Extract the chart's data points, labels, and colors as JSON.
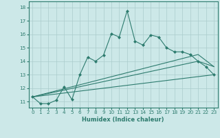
{
  "xlabel": "Humidex (Indice chaleur)",
  "background_color": "#cce8e8",
  "line_color": "#2d7b6e",
  "xlim": [
    -0.5,
    23.5
  ],
  "ylim": [
    10.55,
    18.45
  ],
  "yticks": [
    11,
    12,
    13,
    14,
    15,
    16,
    17,
    18
  ],
  "xticks": [
    0,
    1,
    2,
    3,
    4,
    5,
    6,
    7,
    8,
    9,
    10,
    11,
    12,
    13,
    14,
    15,
    16,
    17,
    18,
    19,
    20,
    21,
    22,
    23
  ],
  "series1_x": [
    0,
    1,
    2,
    3,
    4,
    5,
    6,
    7,
    8,
    9,
    10,
    11,
    12,
    13,
    14,
    15,
    16,
    17,
    18,
    19,
    20,
    21,
    22,
    23
  ],
  "series1_y": [
    11.35,
    10.85,
    10.85,
    11.1,
    12.1,
    11.15,
    13.0,
    14.3,
    14.0,
    14.45,
    16.05,
    15.8,
    17.75,
    15.5,
    15.2,
    15.95,
    15.8,
    15.0,
    14.7,
    14.7,
    14.5,
    14.0,
    13.6,
    13.0
  ],
  "series2_x": [
    0,
    23
  ],
  "series2_y": [
    11.35,
    13.0
  ],
  "series3_x": [
    0,
    21,
    23
  ],
  "series3_y": [
    11.35,
    14.5,
    13.6
  ],
  "series4_x": [
    0,
    21,
    23
  ],
  "series4_y": [
    11.35,
    14.0,
    13.6
  ],
  "grid_color": "#aacccc",
  "xlabel_fontsize": 6.0,
  "tick_fontsize": 5.2
}
